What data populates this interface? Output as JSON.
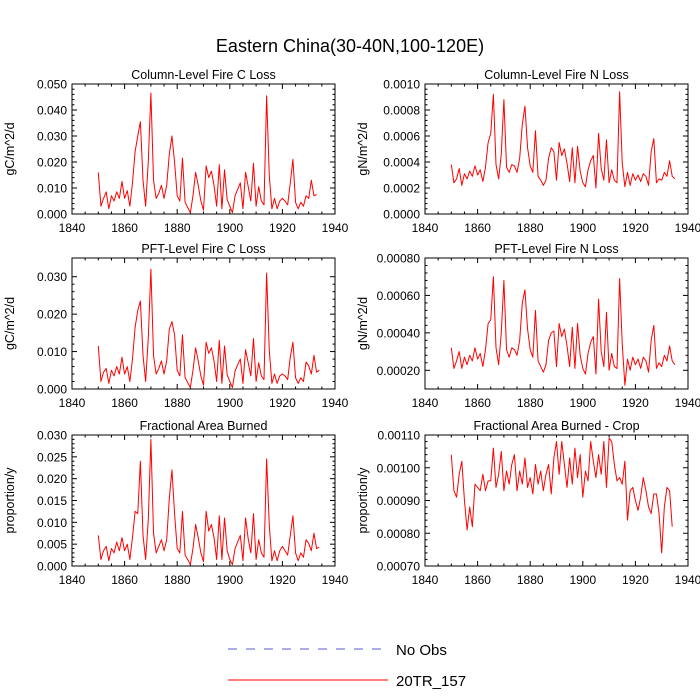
{
  "figure": {
    "title": "Eastern China(30-40N,100-120E)",
    "legend": [
      {
        "label": "No Obs",
        "color": "#5a5acd",
        "dash": "dashed"
      },
      {
        "label": "20TR_157",
        "color": "#ff0000",
        "dash": "solid"
      }
    ]
  },
  "chart_data": [
    {
      "type": "line",
      "title": "Column-Level Fire C Loss",
      "ylabel": "gC/m^2/d",
      "xlim": [
        1840,
        1940
      ],
      "ylim": [
        0,
        0.05
      ],
      "xticks": [
        1840,
        1860,
        1880,
        1900,
        1920,
        1940
      ],
      "xtick_labels": [
        "1840",
        "1860",
        "1880",
        "1900",
        "1920",
        "1940"
      ],
      "yticks": [
        0,
        0.01,
        0.02,
        0.03,
        0.04,
        0.05
      ],
      "ytick_labels": [
        "0.000",
        "0.010",
        "0.020",
        "0.030",
        "0.040",
        "0.050"
      ],
      "x_start": 1850,
      "series": [
        {
          "name": "20TR_157",
          "color": "#ff0000",
          "values": [
            0.016,
            0.003,
            0.006,
            0.0085,
            0.002,
            0.007,
            0.005,
            0.0085,
            0.006,
            0.0125,
            0.006,
            0.009,
            0.003,
            0.012,
            0.024,
            0.03,
            0.0355,
            0.013,
            0.003,
            0.02,
            0.0465,
            0.013,
            0.006,
            0.008,
            0.011,
            0.006,
            0.011,
            0.023,
            0.03,
            0.02,
            0.007,
            0.005,
            0.0215,
            0.0045,
            0.0025,
            0.0005,
            0.007,
            0.016,
            0.011,
            0.005,
            0.0015,
            0.0185,
            0.014,
            0.0165,
            0.011,
            0.003,
            0.019,
            0.002,
            0.017,
            0.0055,
            0.003,
            0.0005,
            0.007,
            0.0095,
            0.012,
            0.002,
            0.016,
            0.0105,
            0.005,
            0.0195,
            0.003,
            0.0105,
            0.005,
            0.0035,
            0.0455,
            0.015,
            0.002,
            0.006,
            0.002,
            0.005,
            0.006,
            0.005,
            0.0035,
            0.012,
            0.021,
            0.0045,
            0.002,
            0.0045,
            0.003,
            0.007,
            0.006,
            0.013,
            0.007,
            0.0075
          ]
        }
      ]
    },
    {
      "type": "line",
      "title": "Column-Level Fire N Loss",
      "ylabel": "gN/m^2/d",
      "xlim": [
        1840,
        1940
      ],
      "ylim": [
        0,
        0.001
      ],
      "xticks": [
        1840,
        1860,
        1880,
        1900,
        1920,
        1940
      ],
      "xtick_labels": [
        "1840",
        "1860",
        "1880",
        "1900",
        "1920",
        "1940"
      ],
      "yticks": [
        0,
        0.0002,
        0.0004,
        0.0006,
        0.0008,
        0.001
      ],
      "ytick_labels": [
        "0.0000",
        "0.0002",
        "0.0004",
        "0.0006",
        "0.0008",
        "0.0010"
      ],
      "x_start": 1850,
      "series": [
        {
          "name": "20TR_157",
          "color": "#ff0000",
          "values": [
            0.00038,
            0.00024,
            0.00027,
            0.00035,
            0.00022,
            0.00031,
            0.00027,
            0.00033,
            0.00029,
            0.00037,
            0.0003,
            0.00034,
            0.00025,
            0.00036,
            0.00055,
            0.00062,
            0.00092,
            0.00038,
            0.00027,
            0.00046,
            0.00088,
            0.00036,
            0.00032,
            0.00038,
            0.00037,
            0.00032,
            0.00043,
            0.00069,
            0.00083,
            0.00051,
            0.00037,
            0.00032,
            0.00064,
            0.00029,
            0.00026,
            0.00022,
            0.00026,
            0.00043,
            0.00051,
            0.00048,
            0.00026,
            0.00055,
            0.00045,
            0.0005,
            0.00039,
            0.00025,
            0.00051,
            0.00024,
            0.00052,
            0.00033,
            0.00024,
            0.00021,
            0.00034,
            0.00041,
            0.00045,
            0.0002,
            0.00062,
            0.00035,
            0.00026,
            0.00057,
            0.00024,
            0.00034,
            0.00026,
            0.00024,
            0.00094,
            0.00039,
            0.00021,
            0.00032,
            0.00022,
            0.00031,
            0.00026,
            0.0003,
            0.00025,
            0.00031,
            0.00029,
            0.00022,
            0.00048,
            0.00058,
            0.00024,
            0.00027,
            0.00026,
            0.00032,
            0.00029,
            0.00041,
            0.00029,
            0.00027
          ]
        }
      ]
    },
    {
      "type": "line",
      "title": "PFT-Level Fire C Loss",
      "ylabel": "gC/m^2/d",
      "xlim": [
        1840,
        1940
      ],
      "ylim": [
        0,
        0.035
      ],
      "xticks": [
        1840,
        1860,
        1880,
        1900,
        1920,
        1940
      ],
      "xtick_labels": [
        "1840",
        "1860",
        "1880",
        "1900",
        "1920",
        "1940"
      ],
      "yticks": [
        0,
        0.01,
        0.02,
        0.03
      ],
      "ytick_labels": [
        "0.000",
        "0.010",
        "0.020",
        "0.030"
      ],
      "x_start": 1850,
      "series": [
        {
          "name": "20TR_157",
          "color": "#ff0000",
          "values": [
            0.0115,
            0.002,
            0.0045,
            0.0055,
            0.0015,
            0.005,
            0.0035,
            0.006,
            0.004,
            0.0085,
            0.004,
            0.006,
            0.002,
            0.008,
            0.0165,
            0.021,
            0.0235,
            0.009,
            0.002,
            0.0135,
            0.032,
            0.009,
            0.004,
            0.0055,
            0.0075,
            0.004,
            0.0075,
            0.016,
            0.018,
            0.0145,
            0.005,
            0.0035,
            0.0145,
            0.003,
            0.0017,
            0.0004,
            0.005,
            0.011,
            0.0075,
            0.0035,
            0.001,
            0.0125,
            0.0095,
            0.011,
            0.0075,
            0.002,
            0.013,
            0.0015,
            0.0115,
            0.0038,
            0.002,
            0.0004,
            0.0048,
            0.0065,
            0.008,
            0.0015,
            0.0105,
            0.007,
            0.0035,
            0.0135,
            0.002,
            0.007,
            0.0035,
            0.0025,
            0.031,
            0.0105,
            0.0015,
            0.004,
            0.0015,
            0.0035,
            0.004,
            0.0035,
            0.0025,
            0.0085,
            0.0125,
            0.003,
            0.0015,
            0.003,
            0.002,
            0.0072,
            0.0062,
            0.004,
            0.009,
            0.0045,
            0.005
          ]
        }
      ]
    },
    {
      "type": "line",
      "title": "PFT-Level Fire N Loss",
      "ylabel": "gN/m^2/d",
      "xlim": [
        1840,
        1940
      ],
      "ylim": [
        0.0001,
        0.0008
      ],
      "xticks": [
        1840,
        1860,
        1880,
        1900,
        1920,
        1940
      ],
      "xtick_labels": [
        "1840",
        "1860",
        "1880",
        "1900",
        "1920",
        "1940"
      ],
      "yticks": [
        0.0002,
        0.0004,
        0.0006,
        0.0008
      ],
      "ytick_labels": [
        "0.00020",
        "0.00040",
        "0.00060",
        "0.00080"
      ],
      "x_start": 1850,
      "series": [
        {
          "name": "20TR_157",
          "color": "#ff0000",
          "values": [
            0.00032,
            0.00021,
            0.00025,
            0.0003,
            0.00021,
            0.00027,
            0.00023,
            0.00028,
            0.00025,
            0.00032,
            0.00026,
            0.00029,
            0.00022,
            0.00031,
            0.00045,
            0.00047,
            0.0007,
            0.00032,
            0.00023,
            0.0004,
            0.00068,
            0.00031,
            0.00027,
            0.00032,
            0.00031,
            0.00028,
            0.00036,
            0.00056,
            0.00063,
            0.00042,
            0.00031,
            0.00027,
            0.00052,
            0.00025,
            0.00022,
            0.00019,
            0.00023,
            0.00036,
            0.0004,
            0.00041,
            0.00022,
            0.00045,
            0.00038,
            0.00042,
            0.00033,
            0.00022,
            0.00043,
            0.00021,
            0.00045,
            0.00028,
            0.00021,
            0.00018,
            0.00029,
            0.00035,
            0.00038,
            0.00018,
            0.00058,
            0.0003,
            0.00022,
            0.00051,
            0.0002,
            0.00029,
            0.00022,
            0.00021,
            0.00069,
            0.00034,
            0.00012,
            0.00026,
            0.0002,
            0.00027,
            0.00023,
            0.00026,
            0.00021,
            0.00027,
            0.00025,
            0.00019,
            0.00036,
            0.00044,
            0.00021,
            0.00024,
            0.00022,
            0.00028,
            0.00025,
            0.00033,
            0.00025,
            0.00023
          ]
        }
      ]
    },
    {
      "type": "line",
      "title": "Fractional Area Burned",
      "ylabel": "proportion/y",
      "xlim": [
        1840,
        1940
      ],
      "ylim": [
        0,
        0.03
      ],
      "xticks": [
        1840,
        1860,
        1880,
        1900,
        1920,
        1940
      ],
      "xtick_labels": [
        "1840",
        "1860",
        "1880",
        "1900",
        "1920",
        "1940"
      ],
      "yticks": [
        0,
        0.005,
        0.01,
        0.015,
        0.02,
        0.025,
        0.03
      ],
      "ytick_labels": [
        "0.000",
        "0.005",
        "0.010",
        "0.015",
        "0.020",
        "0.025",
        "0.030"
      ],
      "x_start": 1850,
      "series": [
        {
          "name": "20TR_157",
          "color": "#ff0000",
          "values": [
            0.007,
            0.0015,
            0.0035,
            0.0045,
            0.0012,
            0.004,
            0.003,
            0.0055,
            0.0035,
            0.0065,
            0.0035,
            0.005,
            0.0015,
            0.0065,
            0.0125,
            0.012,
            0.024,
            0.007,
            0.0015,
            0.0105,
            0.029,
            0.0075,
            0.003,
            0.0045,
            0.006,
            0.0035,
            0.006,
            0.0155,
            0.022,
            0.012,
            0.004,
            0.003,
            0.0125,
            0.0025,
            0.0015,
            0.0003,
            0.004,
            0.0095,
            0.0065,
            0.003,
            0.001,
            0.0125,
            0.008,
            0.0095,
            0.0065,
            0.0015,
            0.0115,
            0.0015,
            0.011,
            0.0035,
            0.0015,
            0.0003,
            0.004,
            0.0055,
            0.007,
            0.0012,
            0.011,
            0.0062,
            0.003,
            0.012,
            0.0015,
            0.006,
            0.003,
            0.002,
            0.0245,
            0.0095,
            0.0012,
            0.0035,
            0.0012,
            0.0035,
            0.0045,
            0.0035,
            0.0025,
            0.007,
            0.0115,
            0.003,
            0.0012,
            0.003,
            0.002,
            0.006,
            0.0052,
            0.0035,
            0.0075,
            0.004,
            0.0043
          ]
        }
      ]
    },
    {
      "type": "line",
      "title": "Fractional Area Burned - Crop",
      "ylabel": "proportion/y",
      "xlim": [
        1840,
        1940
      ],
      "ylim": [
        0.0007,
        0.0011
      ],
      "xticks": [
        1840,
        1860,
        1880,
        1900,
        1920,
        1940
      ],
      "xtick_labels": [
        "1840",
        "1860",
        "1880",
        "1900",
        "1920",
        "1940"
      ],
      "yticks": [
        0.0007,
        0.0008,
        0.0009,
        0.001,
        0.0011
      ],
      "ytick_labels": [
        "0.00070",
        "0.00080",
        "0.00090",
        "0.00100",
        "0.00110"
      ],
      "x_start": 1850,
      "series": [
        {
          "name": "20TR_157",
          "color": "#ff0000",
          "values": [
            0.00104,
            0.00093,
            0.00091,
            0.00098,
            0.00102,
            0.0009,
            0.00081,
            0.00088,
            0.00082,
            0.00095,
            0.00094,
            0.00093,
            0.00098,
            0.00093,
            0.00096,
            0.00096,
            0.00106,
            0.00094,
            0.00098,
            0.00105,
            0.00093,
            0.00099,
            0.00095,
            0.00101,
            0.00104,
            0.00093,
            0.00099,
            0.00095,
            0.00103,
            0.00094,
            0.00097,
            0.00092,
            0.00101,
            0.00095,
            0.00099,
            0.00093,
            0.00098,
            0.00101,
            0.00092,
            0.00103,
            0.00108,
            0.00098,
            0.00108,
            0.00101,
            0.00094,
            0.00103,
            0.00095,
            0.00106,
            0.00097,
            0.00104,
            0.00091,
            0.00099,
            0.00096,
            0.00108,
            0.00102,
            0.00097,
            0.00104,
            0.00098,
            0.00108,
            0.00094,
            0.00109,
            0.00108,
            0.00101,
            0.00096,
            0.00097,
            0.00095,
            0.00102,
            0.00084,
            0.00093,
            0.00094,
            0.0009,
            0.00087,
            0.00091,
            0.00097,
            0.00093,
            0.00088,
            0.00086,
            0.00092,
            0.00092,
            0.00086,
            0.00074,
            0.00088,
            0.00094,
            0.00093,
            0.00082
          ]
        }
      ]
    }
  ]
}
